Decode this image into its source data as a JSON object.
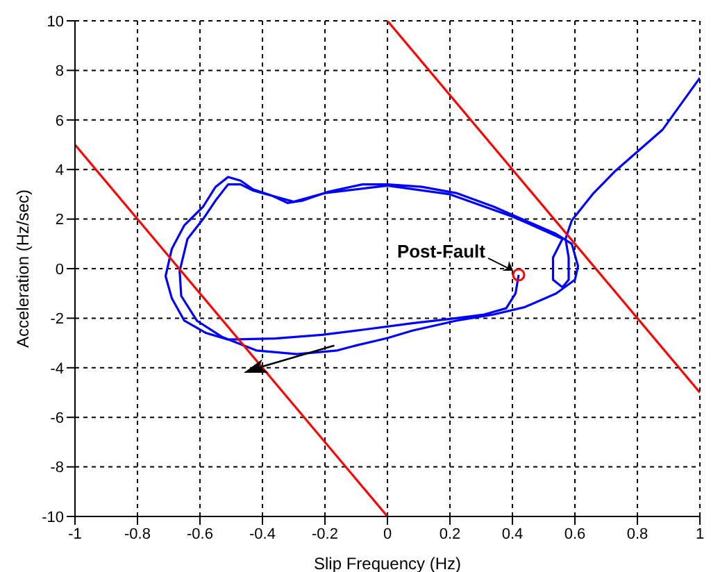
{
  "chart_data": {
    "type": "line",
    "xlabel": "Slip Frequency (Hz)",
    "ylabel": "Acceleration (Hz/sec)",
    "xlim": [
      -1,
      1
    ],
    "ylim": [
      -10,
      10
    ],
    "xticks": [
      -1,
      -0.8,
      -0.6,
      -0.4,
      -0.2,
      0,
      0.2,
      0.4,
      0.6,
      0.8,
      1
    ],
    "yticks": [
      -10,
      -8,
      -6,
      -4,
      -2,
      0,
      2,
      4,
      6,
      8,
      10
    ],
    "grid": true,
    "legend": false,
    "marker": "none",
    "line_style": "solid",
    "annotations": [
      "Post-Fault"
    ],
    "series": [
      {
        "color": "#0000ff",
        "x": [
          0.42,
          0.41,
          0.38,
          0.31,
          0.22,
          0.08,
          -0.07,
          -0.21,
          -0.36,
          -0.51,
          -0.58,
          -0.65,
          -0.69,
          -0.71,
          -0.69,
          -0.65,
          -0.59,
          -0.55,
          -0.51,
          -0.47,
          -0.43,
          -0.37,
          -0.32,
          -0.27,
          -0.19,
          -0.08,
          0,
          0.11,
          0.22,
          0.34,
          0.44,
          0.54,
          0.59,
          0.61,
          0.6,
          0.54,
          0.44,
          0.34,
          0.22,
          0.08,
          0,
          -0.1,
          -0.16,
          -0.29,
          -0.42,
          -0.53,
          -0.61,
          -0.66,
          -0.665,
          -0.64,
          -0.59,
          -0.55,
          -0.51,
          -0.47,
          -0.43,
          -0.3,
          -0.2,
          0,
          0.2,
          0.4,
          0.5,
          0.56,
          0.53,
          0.53,
          0.56,
          0.58,
          0.58,
          0.57,
          0.59,
          0.66,
          0.73,
          0.88,
          1.0
        ],
        "values": [
          -0.25,
          -1.0,
          -1.6,
          -1.85,
          -2.0,
          -2.2,
          -2.45,
          -2.67,
          -2.82,
          -2.86,
          -2.6,
          -2.1,
          -1.2,
          -0.3,
          0.8,
          1.75,
          2.5,
          3.3,
          3.7,
          3.55,
          3.2,
          2.95,
          2.65,
          2.75,
          3.1,
          3.4,
          3.4,
          3.3,
          3.05,
          2.5,
          1.95,
          1.4,
          1.0,
          0.1,
          -0.45,
          -1.0,
          -1.55,
          -1.85,
          -2.1,
          -2.5,
          -2.8,
          -3.1,
          -3.3,
          -3.45,
          -3.3,
          -2.75,
          -2.1,
          -1.1,
          -0.1,
          1.2,
          2.0,
          2.75,
          3.4,
          3.4,
          3.15,
          2.7,
          3.05,
          3.35,
          3.0,
          2.1,
          1.55,
          1.2,
          0.45,
          -0.45,
          -0.75,
          -0.45,
          0.45,
          1.2,
          1.95,
          3.05,
          3.95,
          5.6,
          7.7
        ]
      },
      {
        "color": "#ff0000",
        "x": [
          -1,
          0
        ],
        "values": [
          5,
          -10
        ]
      },
      {
        "color": "#ff0000",
        "x": [
          0,
          1
        ],
        "values": [
          10,
          -5
        ]
      },
      {
        "type": "scatter",
        "color": "#ff0000",
        "marker": "circle",
        "x": [
          0.42
        ],
        "values": [
          -0.25
        ]
      }
    ]
  }
}
